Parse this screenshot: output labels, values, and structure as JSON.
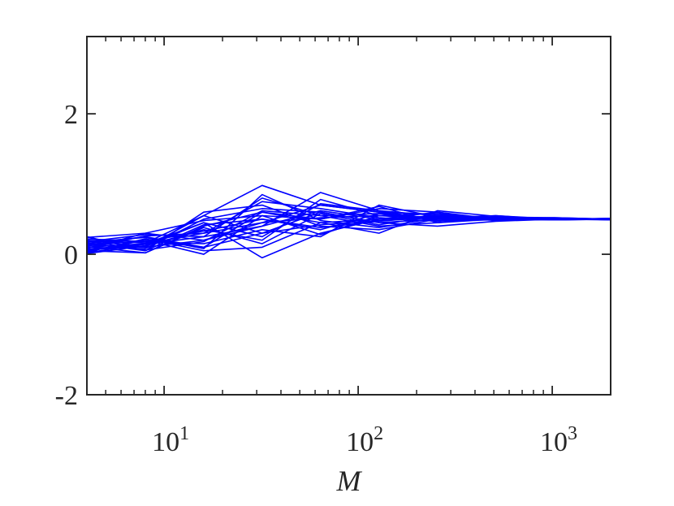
{
  "chart_data": {
    "type": "line",
    "title": "",
    "xlabel": "M",
    "ylabel": "",
    "x_scale": "log",
    "xlim": [
      4,
      2000
    ],
    "ylim": [
      -2,
      3.1
    ],
    "grid": false,
    "legend": "none",
    "line_color": "#0000ff",
    "axis_color": "#262626",
    "x_ticks": [
      {
        "value": 10,
        "base": "10",
        "exp": "1"
      },
      {
        "value": 100,
        "base": "10",
        "exp": "2"
      },
      {
        "value": 1000,
        "base": "10",
        "exp": "3"
      }
    ],
    "y_ticks": [
      {
        "value": -2,
        "label": "-2"
      },
      {
        "value": 0,
        "label": "0"
      },
      {
        "value": 2,
        "label": "2"
      }
    ],
    "x": [
      4,
      8,
      16,
      32,
      64,
      128,
      256,
      512,
      1024,
      2048
    ],
    "series": [
      {
        "values": [
          0.1,
          0.15,
          0.3,
          0.45,
          0.52,
          0.55,
          0.53,
          0.5,
          0.5,
          0.51
        ]
      },
      {
        "values": [
          0.05,
          0.02,
          0.4,
          0.6,
          0.45,
          0.5,
          0.55,
          0.52,
          0.49,
          0.5
        ]
      },
      {
        "values": [
          0.15,
          0.25,
          0.1,
          0.3,
          0.6,
          0.45,
          0.5,
          0.53,
          0.52,
          0.5
        ]
      },
      {
        "values": [
          0.2,
          0.1,
          0.55,
          0.98,
          0.7,
          0.6,
          0.48,
          0.51,
          0.5,
          0.51
        ]
      },
      {
        "values": [
          0.08,
          0.3,
          0.2,
          0.4,
          0.88,
          0.62,
          0.55,
          0.5,
          0.51,
          0.5
        ]
      },
      {
        "values": [
          0.25,
          0.05,
          0.6,
          0.7,
          0.4,
          0.35,
          0.5,
          0.55,
          0.5,
          0.5
        ]
      },
      {
        "values": [
          0.12,
          0.2,
          0.0,
          0.55,
          0.5,
          0.65,
          0.6,
          0.48,
          0.5,
          0.49
        ]
      },
      {
        "values": [
          0.02,
          0.15,
          0.45,
          -0.05,
          0.3,
          0.5,
          0.52,
          0.5,
          0.49,
          0.5
        ]
      },
      {
        "values": [
          0.18,
          0.28,
          0.25,
          0.8,
          0.55,
          0.4,
          0.45,
          0.52,
          0.51,
          0.5
        ]
      },
      {
        "values": [
          0.06,
          0.12,
          0.35,
          0.2,
          0.78,
          0.55,
          0.58,
          0.5,
          0.5,
          0.51
        ]
      },
      {
        "values": [
          0.22,
          0.18,
          0.15,
          0.35,
          0.25,
          0.7,
          0.53,
          0.51,
          0.52,
          0.5
        ]
      },
      {
        "values": [
          0.1,
          0.08,
          0.5,
          0.65,
          0.6,
          0.45,
          0.4,
          0.47,
          0.5,
          0.5
        ]
      },
      {
        "values": [
          0.03,
          0.22,
          0.05,
          0.1,
          0.45,
          0.3,
          0.62,
          0.54,
          0.49,
          0.51
        ]
      },
      {
        "values": [
          0.16,
          0.05,
          0.42,
          0.5,
          0.35,
          0.58,
          0.5,
          0.5,
          0.51,
          0.49
        ]
      },
      {
        "values": [
          0.09,
          0.26,
          0.3,
          0.75,
          0.65,
          0.52,
          0.47,
          0.53,
          0.5,
          0.5
        ]
      },
      {
        "values": [
          0.13,
          0.1,
          0.2,
          0.45,
          0.7,
          0.6,
          0.57,
          0.49,
          0.5,
          0.51
        ]
      },
      {
        "values": [
          0.2,
          0.16,
          0.55,
          0.3,
          0.42,
          0.48,
          0.52,
          0.52,
          0.51,
          0.5
        ]
      },
      {
        "values": [
          0.04,
          0.2,
          0.1,
          0.6,
          0.5,
          0.68,
          0.45,
          0.5,
          0.49,
          0.5
        ]
      },
      {
        "values": [
          0.11,
          0.02,
          0.38,
          0.15,
          0.58,
          0.42,
          0.55,
          0.48,
          0.5,
          0.5
        ]
      },
      {
        "values": [
          0.24,
          0.3,
          0.48,
          0.55,
          0.28,
          0.55,
          0.5,
          0.51,
          0.51,
          0.49
        ]
      },
      {
        "values": [
          0.07,
          0.14,
          0.25,
          0.4,
          0.62,
          0.5,
          0.6,
          0.5,
          0.5,
          0.5
        ]
      },
      {
        "values": [
          0.17,
          0.24,
          0.08,
          0.85,
          0.48,
          0.38,
          0.52,
          0.55,
          0.49,
          0.51
        ]
      },
      {
        "values": [
          0.01,
          0.12,
          0.45,
          0.25,
          0.72,
          0.62,
          0.48,
          0.49,
          0.5,
          0.5
        ]
      },
      {
        "values": [
          0.14,
          0.18,
          0.33,
          0.5,
          0.38,
          0.47,
          0.54,
          0.52,
          0.51,
          0.5
        ]
      },
      {
        "values": [
          0.19,
          0.06,
          0.18,
          0.62,
          0.55,
          0.58,
          0.5,
          0.5,
          0.5,
          0.51
        ]
      }
    ]
  }
}
